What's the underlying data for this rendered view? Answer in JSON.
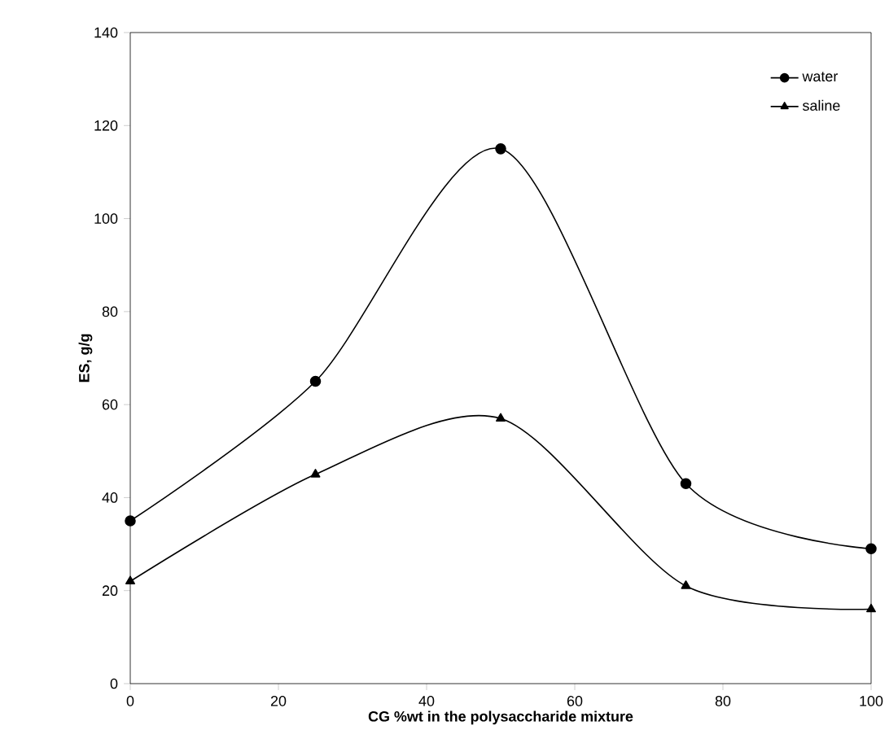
{
  "chart_data": {
    "type": "line",
    "xlabel": "CG %wt in the polysaccharide mixture",
    "ylabel": "ES, g/g",
    "x": [
      0,
      25,
      50,
      75,
      100
    ],
    "series": [
      {
        "name": "water",
        "color": "#000000",
        "marker": "circle",
        "values": [
          35,
          65,
          115,
          43,
          29
        ]
      },
      {
        "name": "saline",
        "color": "#000000",
        "marker": "triangle",
        "values": [
          22,
          45,
          57,
          21,
          16
        ]
      }
    ],
    "xlim": [
      0,
      100
    ],
    "xticks": [
      0,
      20,
      40,
      60,
      80,
      100
    ],
    "ylim": [
      0,
      140
    ],
    "yticks": [
      0,
      20,
      40,
      60,
      80,
      100,
      120,
      140
    ],
    "grid": false,
    "legend": "top right",
    "line_style": "solid"
  }
}
